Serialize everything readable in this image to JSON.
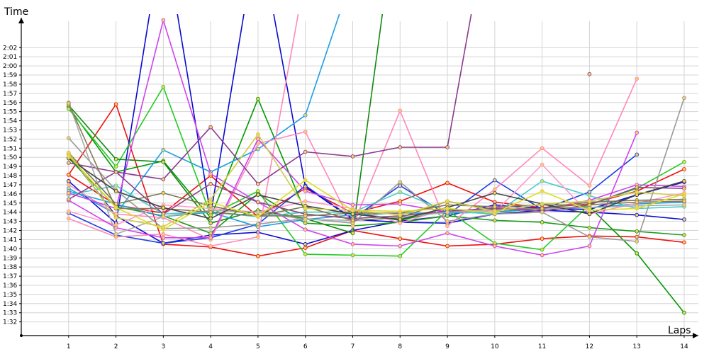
{
  "chart_data": {
    "type": "line",
    "title": "",
    "xlabel": "Laps",
    "ylabel": "Time",
    "x": [
      1,
      2,
      3,
      4,
      5,
      6,
      7,
      8,
      9,
      10,
      11,
      12,
      13,
      14
    ],
    "xlim": [
      0,
      14.3
    ],
    "ylim_seconds": [
      90.5,
      124.5
    ],
    "y_tick_labels": [
      "1:32",
      "1:33",
      "1:34",
      "1:35",
      "1:36",
      "1:37",
      "1:38",
      "1:39",
      "1:40",
      "1:41",
      "1:42",
      "1:43",
      "1:44",
      "1:45",
      "1:46",
      "1:47",
      "1:48",
      "1:49",
      "1:50",
      "1:51",
      "1:52",
      "1:53",
      "1:54",
      "1:55",
      "1:56",
      "1:57",
      "1:58",
      "1:59",
      "2:00",
      "2:01",
      "2:02"
    ],
    "grid": true,
    "legend": "none",
    "series": [
      {
        "color": "#ee1111",
        "values": [
          108.1,
          115.8,
          100.5,
          100.2,
          99.2,
          100.1,
          102.0,
          101.1,
          100.3,
          100.5,
          101.1,
          101.4,
          101.3,
          100.7
        ]
      },
      {
        "color": "#ee1111",
        "values": [
          108.1,
          104.8,
          103.9,
          108.0,
          103.5,
          106.6,
          103.9,
          105.2,
          107.2,
          105.1,
          104.5,
          104.9,
          106.3,
          108.7
        ]
      },
      {
        "color": "#0a0ad0",
        "values": [
          110.3,
          103.6,
          100.6,
          101.5,
          101.8,
          100.5,
          102.0,
          103.0,
          103.6,
          104.8,
          104.4,
          104.3,
          105.9,
          107.3
        ]
      },
      {
        "color": "#1a3fe0",
        "values": [
          103.9,
          101.5,
          100.6,
          101.2,
          102.7,
          106.9,
          103.3,
          106.9,
          103.7,
          107.5,
          104.3,
          106.2,
          110.3,
          null
        ]
      },
      {
        "color": "#0a0ad0",
        "values": [
          107.4,
          102.8,
          135.0,
          103.7,
          135.0,
          106.8,
          103.2,
          102.9,
          102.8,
          103.8,
          104.2,
          104.0,
          103.7,
          103.2
        ]
      },
      {
        "color": "#009a00",
        "values": [
          115.5,
          108.4,
          109.6,
          103.4,
          116.4,
          104.0,
          104.0,
          103.1,
          104.3,
          104.0,
          104.4,
          104.6,
          99.5,
          93.0
        ]
      },
      {
        "color": "#22cc22",
        "values": [
          115.3,
          109.0,
          117.7,
          103.7,
          106.3,
          99.4,
          99.3,
          99.2,
          104.2,
          100.6,
          99.9,
          104.8,
          106.6,
          109.5
        ]
      },
      {
        "color": "#118811",
        "values": [
          115.7,
          109.8,
          109.5,
          102.8,
          104.2,
          103.3,
          101.7,
          140.0,
          null,
          null,
          null,
          null,
          null,
          null
        ]
      },
      {
        "color": "#1a9a1a",
        "values": [
          109.9,
          104.6,
          103.6,
          101.7,
          106.0,
          102.8,
          102.5,
          102.9,
          103.6,
          103.1,
          102.9,
          102.3,
          101.9,
          101.5
        ]
      },
      {
        "color": "#1ba0e0",
        "values": [
          106.6,
          103.8,
          110.8,
          108.4,
          110.9,
          114.6,
          130.0,
          null,
          null,
          null,
          null,
          null,
          null,
          null
        ]
      },
      {
        "color": "#1ba0e0",
        "values": [
          106.3,
          104.9,
          103.5,
          104.0,
          102.4,
          103.2,
          103.7,
          103.9,
          103.9,
          104.0,
          104.4,
          104.5,
          104.9,
          105.1
        ]
      },
      {
        "color": "#44cccc",
        "values": [
          105.9,
          106.9,
          103.8,
          104.0,
          103.5,
          104.0,
          104.0,
          106.2,
          104.1,
          103.8,
          107.4,
          105.8,
          104.4,
          104.6
        ]
      },
      {
        "color": "#ff88bb",
        "values": [
          107.0,
          103.8,
          103.4,
          101.0,
          111.5,
          112.8,
          102.5,
          115.1,
          102.5,
          106.5,
          111.0,
          106.9,
          118.6,
          null
        ]
      },
      {
        "color": "#ff88bb",
        "values": [
          103.3,
          101.3,
          101.6,
          100.3,
          101.3,
          130.0,
          null,
          null,
          null,
          null,
          null,
          null,
          null,
          null
        ]
      },
      {
        "color": "#ff99cc",
        "values": [
          104.1,
          102.6,
          104.8,
          104.4,
          104.0,
          105.2,
          104.4,
          102.8,
          104.4,
          104.0,
          109.2,
          103.8,
          105.0,
          106.1
        ]
      },
      {
        "color": "#cc44ee",
        "values": [
          106.1,
          104.4,
          125.0,
          108.2,
          105.1,
          102.1,
          100.5,
          100.3,
          101.7,
          100.3,
          99.3,
          100.3,
          112.7,
          null
        ]
      },
      {
        "color": "#cc44ee",
        "values": [
          105.3,
          102.3,
          101.2,
          101.2,
          112.0,
          106.3,
          104.8,
          104.9,
          104.0,
          104.5,
          104.3,
          105.3,
          107.0,
          106.8
        ]
      },
      {
        "color": "#8b3a8f",
        "values": [
          109.4,
          108.4,
          107.6,
          113.3,
          107.1,
          110.6,
          110.1,
          111.1,
          111.1,
          140.0,
          null,
          119.1,
          null,
          null
        ]
      },
      {
        "color": "#884488",
        "values": [
          105.4,
          108.4,
          103.8,
          107.1,
          105.1,
          103.8,
          103.3,
          103.6,
          104.1,
          104.4,
          104.1,
          104.8,
          106.7,
          106.6
        ]
      },
      {
        "color": "#999999",
        "values": [
          112.1,
          106.4,
          102.2,
          102.3,
          102.7,
          103.3,
          102.8,
          107.3,
          103.0,
          103.8,
          104.0,
          101.3,
          100.8,
          116.5
        ]
      },
      {
        "color": "#aaaaaa",
        "values": [
          116.0,
          101.6,
          103.5,
          104.2,
          104.0,
          103.2,
          103.1,
          103.4,
          104.0,
          104.2,
          104.4,
          104.5,
          104.7,
          104.8
        ]
      },
      {
        "color": "#777755",
        "values": [
          110.5,
          104.9,
          106.1,
          104.7,
          103.6,
          104.6,
          103.1,
          103.4,
          105.2,
          104.2,
          104.4,
          105.1,
          105.3,
          105.4
        ]
      },
      {
        "color": "#8a7a5a",
        "values": [
          115.9,
          104.4,
          104.4,
          104.0,
          103.6,
          103.6,
          103.9,
          103.9,
          104.8,
          104.6,
          104.8,
          104.8,
          105.1,
          105.2
        ]
      },
      {
        "color": "#444444",
        "values": [
          109.9,
          106.3,
          104.5,
          103.3,
          105.9,
          104.7,
          103.8,
          103.2,
          104.5,
          106.1,
          104.9,
          103.8,
          105.9,
          107.4
        ]
      },
      {
        "color": "#dddd22",
        "values": [
          110.2,
          104.5,
          102.1,
          105.1,
          103.5,
          107.5,
          104.2,
          104.1,
          104.4,
          103.9,
          106.3,
          104.2,
          104.4,
          106.0
        ]
      },
      {
        "color": "#cccc44",
        "values": [
          110.5,
          103.4,
          102.4,
          105.4,
          112.5,
          104.4,
          104.2,
          103.7,
          105.2,
          104.1,
          104.9,
          105.2,
          106.2,
          105.8
        ]
      }
    ]
  }
}
